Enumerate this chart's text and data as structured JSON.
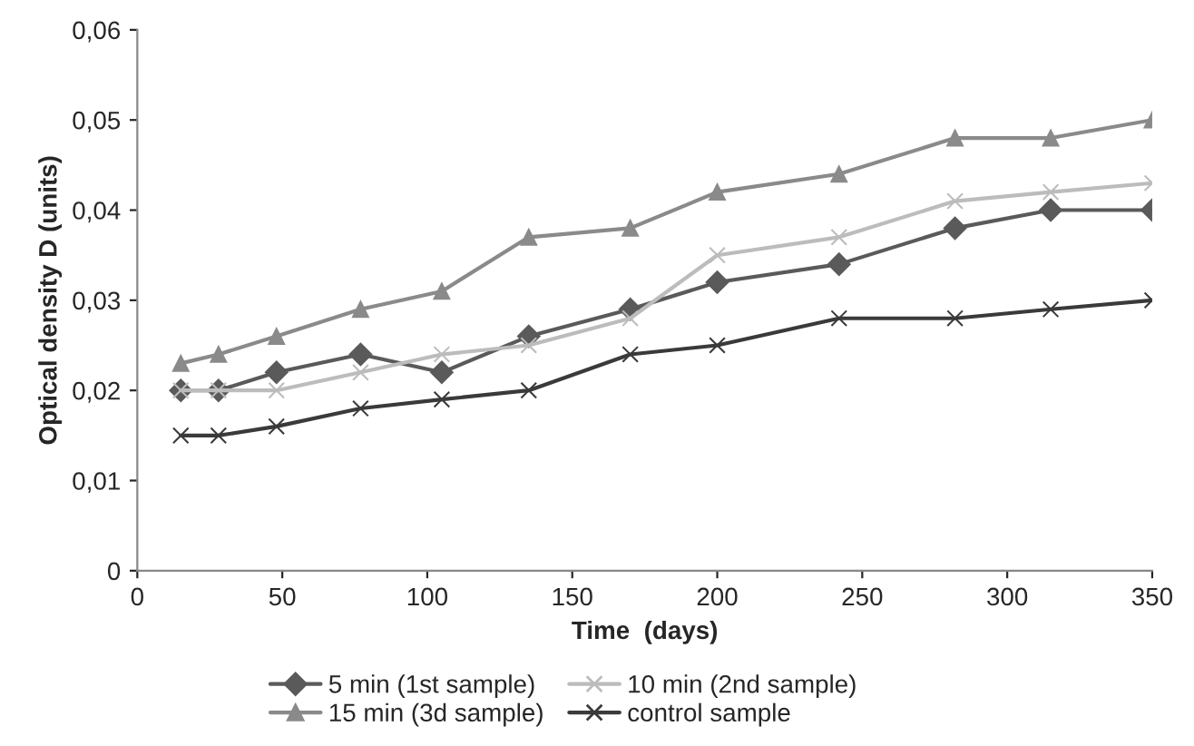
{
  "chart_data": {
    "type": "line",
    "xlabel": "Time  (days)",
    "ylabel": "Optical density D (units)",
    "x": [
      15,
      28,
      48,
      77,
      105,
      135,
      170,
      200,
      242,
      282,
      315,
      350
    ],
    "series": [
      {
        "name": "5 min (1st sample)",
        "color": "#5a5a5a",
        "marker": "diamond",
        "values": [
          0.02,
          0.02,
          0.022,
          0.024,
          0.022,
          0.026,
          0.029,
          0.032,
          0.034,
          0.038,
          0.04,
          0.04
        ]
      },
      {
        "name": "10 min (2nd sample)",
        "color": "#bcbcbc",
        "marker": "cross",
        "values": [
          0.02,
          0.02,
          0.02,
          0.022,
          0.024,
          0.025,
          0.028,
          0.035,
          0.037,
          0.041,
          0.042,
          0.043
        ]
      },
      {
        "name": "15 min (3d sample)",
        "color": "#8a8a8a",
        "marker": "triangle",
        "values": [
          0.023,
          0.024,
          0.026,
          0.029,
          0.031,
          0.037,
          0.038,
          0.042,
          0.044,
          0.048,
          0.048,
          0.05
        ]
      },
      {
        "name": "control sample",
        "color": "#3a3a3a",
        "marker": "cross",
        "values": [
          0.015,
          0.015,
          0.016,
          0.018,
          0.019,
          0.02,
          0.024,
          0.025,
          0.028,
          0.028,
          0.029,
          0.03
        ]
      }
    ],
    "xlim": [
      0,
      350
    ],
    "xticks": [
      0,
      50,
      100,
      150,
      200,
      250,
      300,
      350
    ],
    "ylim": [
      0,
      0.06
    ],
    "yticks": [
      0,
      {
        "value": 0.01,
        "label": "0,01"
      },
      {
        "value": 0.02,
        "label": "0,02"
      },
      {
        "value": 0.03,
        "label": "0,03"
      },
      {
        "value": 0.04,
        "label": "0,04"
      },
      {
        "value": 0.05,
        "label": "0,05"
      },
      {
        "value": 0.06,
        "label": "0,06"
      }
    ],
    "grid": false,
    "legend": "bottom",
    "line_style": "solid"
  }
}
